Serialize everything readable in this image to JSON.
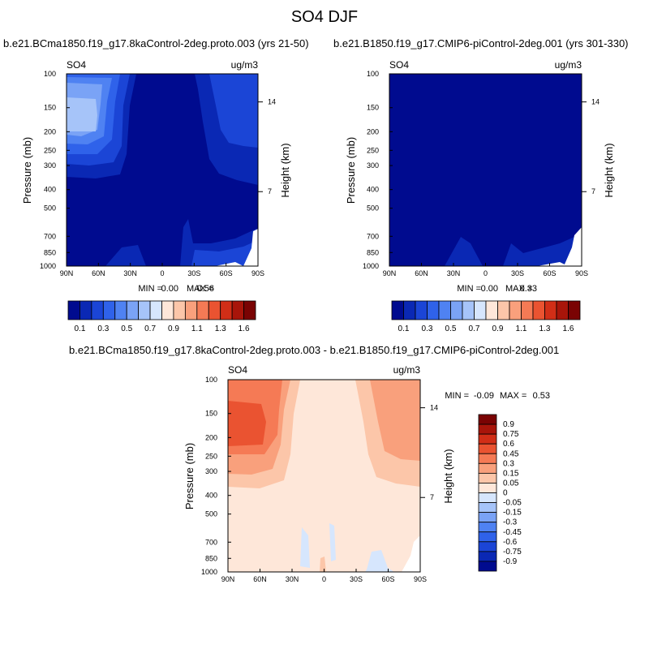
{
  "figure": {
    "title": "SO4 DJF"
  },
  "chart_data": [
    {
      "type": "heatmap",
      "subtype": "filled-contour",
      "panel": "case",
      "title": "b.e21.BCma1850.f19_g17.8kaControl-2deg.proto.003 (yrs 21-50)",
      "left_label": "SO4",
      "units": "ug/m3",
      "xlabel": "",
      "ylabel": "Pressure (mb)",
      "ylabel_right": "Height (km)",
      "x_ticks": [
        "90N",
        "60N",
        "30N",
        "0",
        "30S",
        "60S",
        "90S"
      ],
      "y_ticks": [
        "100",
        "150",
        "200",
        "250",
        "300",
        "400",
        "500",
        "700",
        "850",
        "1000"
      ],
      "y_ticks_right": [
        "14",
        "7"
      ],
      "min_label": "MIN =",
      "min_value": "0.00",
      "max_label": "MAX =",
      "max_value": "0.56",
      "colorbar_labels": [
        "0.1",
        "0.3",
        "0.5",
        "0.7",
        "0.9",
        "1.1",
        "1.3",
        "1.6"
      ],
      "colorbar_colors": [
        "#000b8f",
        "#0a28b4",
        "#1b45d6",
        "#2f62ea",
        "#4f82f2",
        "#7aa3f6",
        "#a6c4f9",
        "#d6e6fd",
        "#fee7d9",
        "#fcc6a9",
        "#f9a07c",
        "#f57a55",
        "#ea5331",
        "#d12e17",
        "#a8150a",
        "#7a0303"
      ]
    },
    {
      "type": "heatmap",
      "subtype": "filled-contour",
      "panel": "control",
      "title": "b.e21.B1850.f19_g17.CMIP6-piControl-2deg.001 (yrs 301-330)",
      "left_label": "SO4",
      "units": "ug/m3",
      "xlabel": "",
      "ylabel": "Pressure (mb)",
      "ylabel_right": "Height (km)",
      "x_ticks": [
        "90N",
        "60N",
        "30N",
        "0",
        "30S",
        "60S",
        "90S"
      ],
      "y_ticks": [
        "100",
        "150",
        "200",
        "250",
        "300",
        "400",
        "500",
        "700",
        "850",
        "1000"
      ],
      "y_ticks_right": [
        "14",
        "7"
      ],
      "min_label": "MIN =",
      "min_value": "0.00",
      "max_label": "MAX =",
      "max_value": "0.33",
      "colorbar_labels": [
        "0.1",
        "0.3",
        "0.5",
        "0.7",
        "0.9",
        "1.1",
        "1.3",
        "1.6"
      ],
      "colorbar_colors": [
        "#000b8f",
        "#0a28b4",
        "#1b45d6",
        "#2f62ea",
        "#4f82f2",
        "#7aa3f6",
        "#a6c4f9",
        "#d6e6fd",
        "#fee7d9",
        "#fcc6a9",
        "#f9a07c",
        "#f57a55",
        "#ea5331",
        "#d12e17",
        "#a8150a",
        "#7a0303"
      ]
    },
    {
      "type": "heatmap",
      "subtype": "filled-contour",
      "panel": "difference",
      "title": "b.e21.BCma1850.f19_g17.8kaControl-2deg.proto.003 - b.e21.B1850.f19_g17.CMIP6-piControl-2deg.001",
      "left_label": "SO4",
      "units": "ug/m3",
      "xlabel": "",
      "ylabel": "Pressure (mb)",
      "ylabel_right": "Height (km)",
      "x_ticks": [
        "90N",
        "60N",
        "30N",
        "0",
        "30S",
        "60S",
        "90S"
      ],
      "y_ticks": [
        "100",
        "150",
        "200",
        "250",
        "300",
        "400",
        "500",
        "700",
        "850",
        "1000"
      ],
      "y_ticks_right": [
        "14",
        "7"
      ],
      "min_label": "MIN =",
      "min_value": "-0.09",
      "max_label": "MAX =",
      "max_value": "0.53",
      "colorbar_labels": [
        "0.9",
        "0.75",
        "0.6",
        "0.45",
        "0.3",
        "0.15",
        "0.05",
        "0",
        "-0.05",
        "-0.15",
        "-0.3",
        "-0.45",
        "-0.6",
        "-0.75",
        "-0.9"
      ],
      "colorbar_colors": [
        "#7a0303",
        "#a8150a",
        "#d12e17",
        "#ea5331",
        "#f57a55",
        "#f9a07c",
        "#fcc6a9",
        "#fee7d9",
        "#d6e6fd",
        "#a6c4f9",
        "#7aa3f6",
        "#4f82f2",
        "#2f62ea",
        "#1b45d6",
        "#0a28b4",
        "#000b8f"
      ]
    }
  ]
}
